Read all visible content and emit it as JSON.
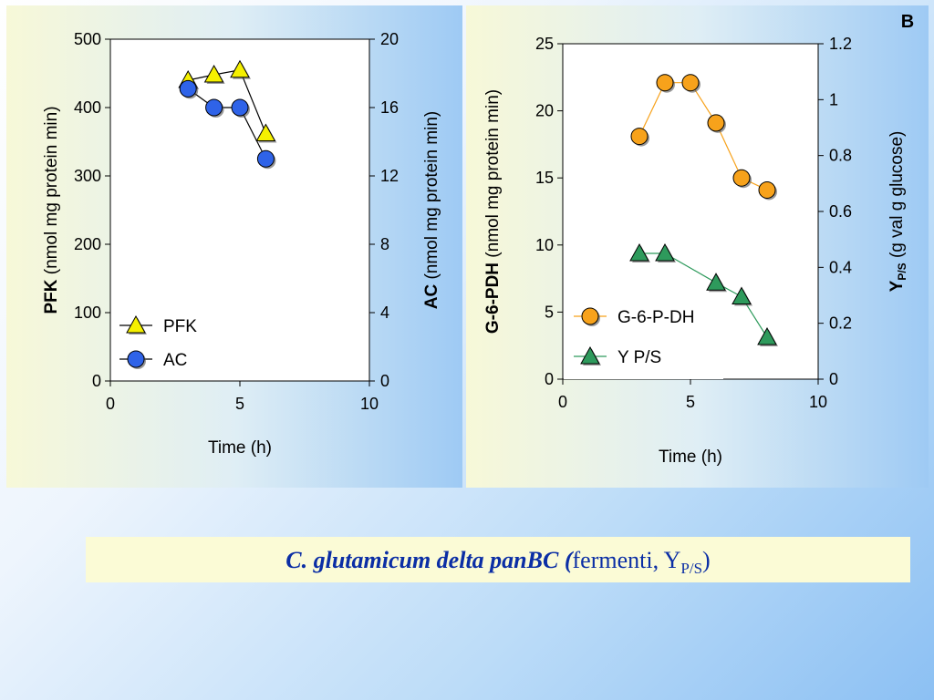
{
  "chart_data": [
    {
      "type": "scatter",
      "panel_label": "",
      "xlabel": "Time (h)",
      "xlim": [
        0,
        10
      ],
      "x_ticks": [
        "0",
        "5",
        "10"
      ],
      "ylabel_left_bold": "PFK",
      "ylabel_left_rest": "(nmol mg protein",
      "ylabel_left_unit": "min",
      "ylim_left": [
        0,
        500
      ],
      "y_ticks_left": [
        "0",
        "100",
        "200",
        "300",
        "400",
        "500"
      ],
      "ylabel_right_bold": "AC",
      "ylabel_right_rest": "(nmol mg protein",
      "ylabel_right_unit": "min",
      "ylim_right": [
        0,
        20
      ],
      "y_ticks_right": [
        "0",
        "4",
        "8",
        "12",
        "16",
        "20"
      ],
      "series": [
        {
          "name": "PFK",
          "axis": "left",
          "marker": "triangle",
          "color": "#f5f000",
          "line": "#000000",
          "x": [
            3,
            4,
            5,
            6
          ],
          "y": [
            440,
            448,
            455,
            362
          ]
        },
        {
          "name": "AC",
          "axis": "right",
          "marker": "circle",
          "color": "#2f63e8",
          "line": "#000000",
          "x": [
            3,
            4,
            5,
            6
          ],
          "y": [
            17.1,
            16.0,
            16.0,
            13.0
          ]
        }
      ],
      "legend_placement": "bottom-left"
    },
    {
      "type": "scatter",
      "panel_label": "B",
      "xlabel": "Time (h)",
      "xlim": [
        0,
        10
      ],
      "x_ticks": [
        "0",
        "5",
        "10"
      ],
      "ylabel_left_bold": "G-6-PDH",
      "ylabel_left_rest": "(nmol mg protein",
      "ylabel_left_unit": "min",
      "ylim_left": [
        0,
        25
      ],
      "y_ticks_left": [
        "0",
        "5",
        "10",
        "15",
        "20",
        "25"
      ],
      "ylabel_right_bold": "Y",
      "ylabel_right_sub": "P/S",
      "ylabel_right_rest": "(g val g glucose",
      "ylim_right": [
        0,
        1.2
      ],
      "y_ticks_right": [
        "0",
        "0.2",
        "0.4",
        "0.6",
        "0.8",
        "1",
        "1.2"
      ],
      "series": [
        {
          "name": "G-6-P-DH",
          "axis": "left",
          "marker": "circle",
          "color": "#f7a21b",
          "line": "#f7a21b",
          "x": [
            3,
            4,
            5,
            6,
            7,
            8
          ],
          "y": [
            18.1,
            22.1,
            22.1,
            19.1,
            15.0,
            14.1
          ]
        },
        {
          "name": "Y P/S",
          "axis": "right",
          "marker": "triangle",
          "color": "#2e9a5c",
          "line": "#2e9a5c",
          "x": [
            3,
            4,
            6,
            7,
            8
          ],
          "y": [
            0.45,
            0.45,
            0.345,
            0.295,
            0.15
          ]
        }
      ],
      "legend_placement": "bottom-left"
    }
  ],
  "caption": {
    "species": "C. glutamicum delta panBC",
    "open_paren": " (",
    "word": "fermenti",
    "comma": ", ",
    "y": "Y",
    "sub": "P/S",
    "close_paren": ")"
  }
}
